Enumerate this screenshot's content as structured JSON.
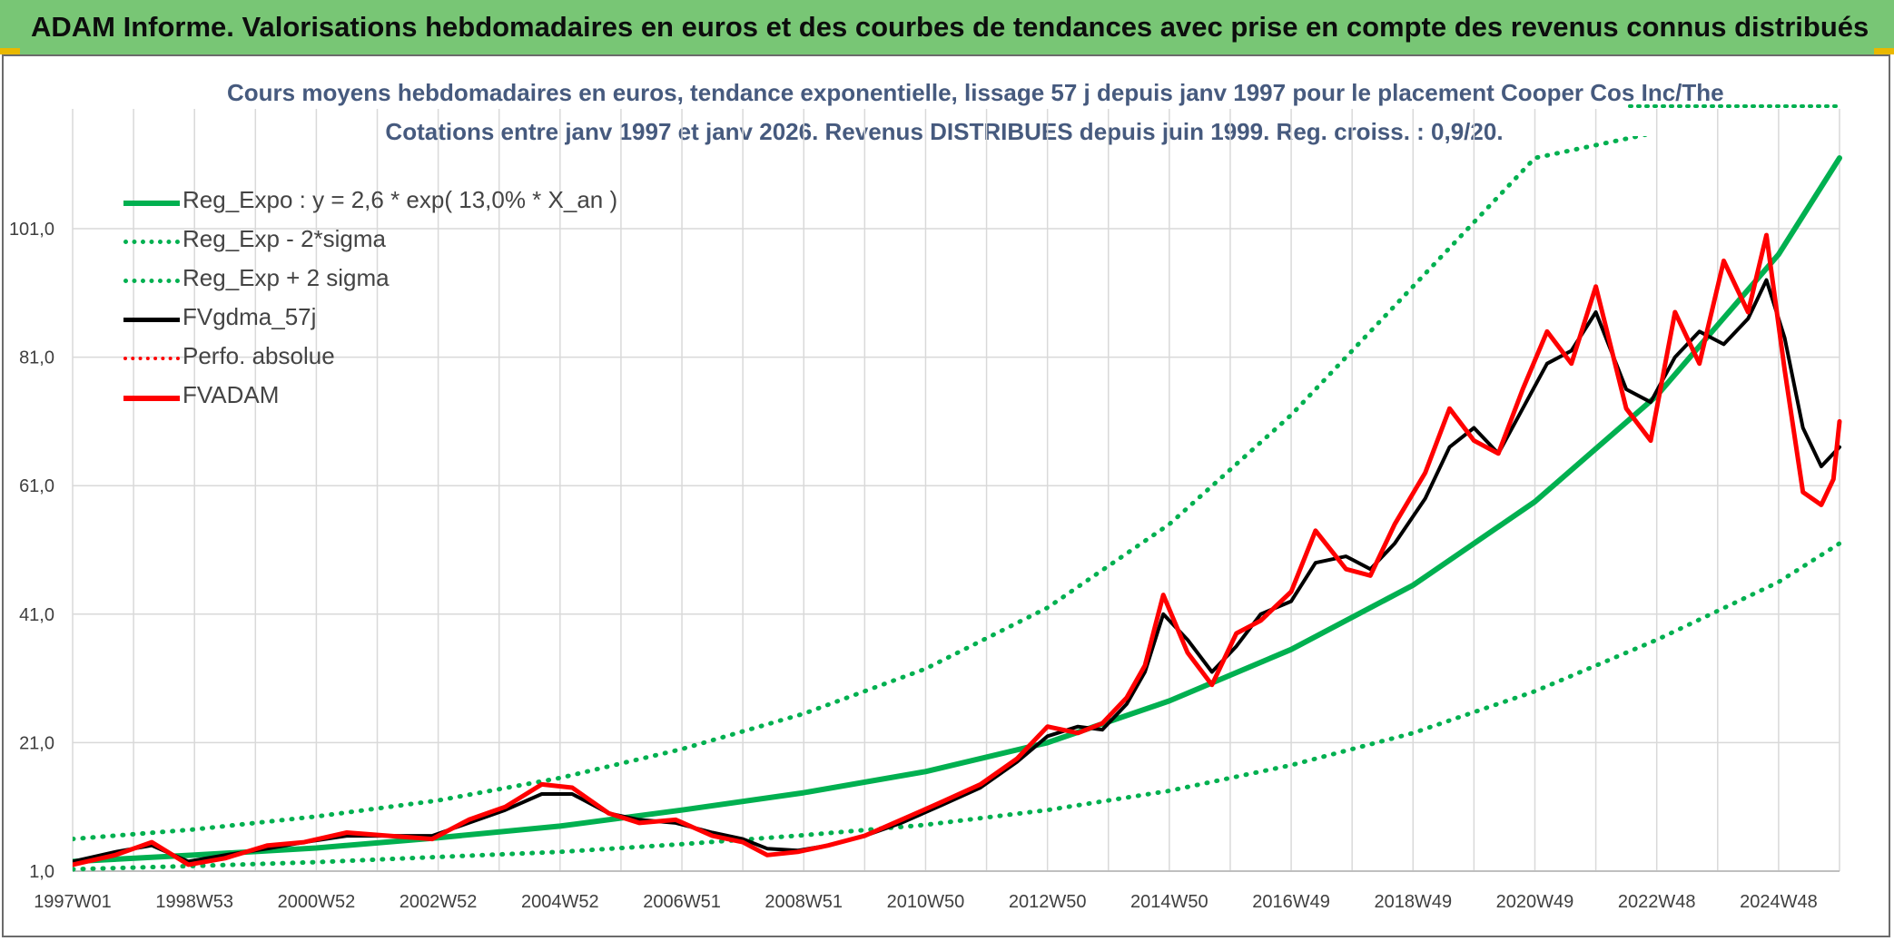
{
  "header": {
    "title": "ADAM Informe. Valorisations hebdomadaires en euros et des courbes de tendances avec prise en compte des revenus connus distribués"
  },
  "colors": {
    "header_bg": "#78c675",
    "trend": "#00b050",
    "smooth": "#000000",
    "price": "#ff0000",
    "subtitle": "#465a7e"
  },
  "chart_data": {
    "type": "line",
    "title_line1": "Cours moyens hebdomadaires en euros, tendance exponentielle, lissage 57 j depuis janv 1997 pour le placement Cooper Cos Inc/The",
    "title_line2": "Cotations entre janv 1997 et janv 2026. Revenus DISTRIBUES depuis juin 1999. Reg. croiss. : 0,9/20.",
    "xlabel": "",
    "ylabel": "",
    "x_tick_labels": [
      "1997W01",
      "1998W53",
      "2000W52",
      "2002W52",
      "2004W52",
      "2006W51",
      "2008W51",
      "2010W50",
      "2012W50",
      "2014W50",
      "2016W49",
      "2018W49",
      "2020W49",
      "2022W48",
      "2024W48"
    ],
    "x_range": [
      1997.0,
      2026.0
    ],
    "y_tick_labels": [
      "1,0",
      "21,0",
      "41,0",
      "61,0",
      "81,0",
      "101,0"
    ],
    "ylim": [
      1,
      116
    ],
    "grid": true,
    "legend_position": "top-left",
    "legend": [
      {
        "label": "Reg_Expo : y = 2,6 * exp( 13,0% *  X_an )",
        "style": "solid",
        "color": "#00b050"
      },
      {
        "label": "Reg_Exp - 2*sigma",
        "style": "dotted",
        "color": "#00b050"
      },
      {
        "label": "Reg_Exp + 2 sigma",
        "style": "dotted",
        "color": "#00b050"
      },
      {
        "label": "FVgdma_57j",
        "style": "solid",
        "color": "#000000"
      },
      {
        "label": "Perfo. absolue",
        "style": "dotted",
        "color": "#ff0000"
      },
      {
        "label": "FVADAM",
        "style": "solid",
        "color": "#ff0000"
      }
    ],
    "series": [
      {
        "name": "Reg_Expo : y = 2,6 * exp( 13,0% *  X_an )",
        "x": [
          1997,
          1999,
          2001,
          2003,
          2005,
          2007,
          2009,
          2011,
          2013,
          2015,
          2017,
          2019,
          2021,
          2023,
          2025,
          2026
        ],
        "values": [
          2.5,
          3.5,
          4.6,
          6.2,
          8.0,
          10.5,
          13.2,
          16.5,
          21.0,
          27.5,
          35.5,
          45.5,
          58.5,
          75.0,
          97.0,
          112.0
        ]
      },
      {
        "name": "Reg_Exp - 2*sigma",
        "x": [
          1997,
          1999,
          2001,
          2003,
          2005,
          2007,
          2009,
          2011,
          2013,
          2015,
          2017,
          2019,
          2021,
          2023,
          2025,
          2026
        ],
        "values": [
          1.3,
          1.8,
          2.4,
          3.2,
          4.0,
          5.2,
          6.6,
          8.2,
          10.5,
          13.5,
          17.5,
          22.5,
          29.0,
          37.0,
          46.0,
          52.0
        ]
      },
      {
        "name": "Reg_Exp + 2 sigma",
        "x": [
          1997,
          1999,
          2001,
          2003,
          2005,
          2007,
          2009,
          2011,
          2013,
          2015,
          2017,
          2019,
          2021,
          2023,
          2025,
          2026
        ],
        "values": [
          6.0,
          7.5,
          9.5,
          12.0,
          15.5,
          20.0,
          25.5,
          32.5,
          42.0,
          55.0,
          72.0,
          92.0,
          112.0,
          116.0,
          116.0,
          116.0
        ]
      },
      {
        "name": "FVgdma_57j",
        "x": [
          1997.0,
          1997.7,
          1998.3,
          1998.9,
          1999.5,
          2000.2,
          2000.8,
          2001.5,
          2002.2,
          2002.9,
          2003.5,
          2004.1,
          2004.7,
          2005.2,
          2005.8,
          2006.3,
          2006.9,
          2007.5,
          2008.0,
          2008.4,
          2008.9,
          2009.4,
          2010.0,
          2010.6,
          2011.2,
          2011.9,
          2012.5,
          2013.0,
          2013.5,
          2013.9,
          2014.3,
          2014.6,
          2014.9,
          2015.3,
          2015.7,
          2016.1,
          2016.5,
          2017.0,
          2017.4,
          2017.9,
          2018.3,
          2018.7,
          2019.2,
          2019.6,
          2020.0,
          2020.4,
          2020.8,
          2021.2,
          2021.6,
          2022.0,
          2022.5,
          2022.9,
          2023.3,
          2023.7,
          2024.1,
          2024.5,
          2024.8,
          2025.1,
          2025.4,
          2025.7,
          2025.9,
          2026.0
        ],
        "values": [
          2.5,
          4.0,
          5.0,
          2.5,
          3.5,
          4.5,
          5.5,
          6.5,
          6.5,
          6.5,
          8.5,
          10.5,
          13.0,
          13.0,
          10.0,
          9.0,
          8.5,
          7.0,
          6.0,
          4.5,
          4.2,
          5.0,
          6.5,
          8.5,
          11.0,
          14.0,
          18.0,
          22.0,
          23.5,
          23.0,
          27.0,
          32.0,
          41.0,
          37.0,
          32.0,
          36.0,
          41.0,
          43.0,
          49.0,
          50.0,
          48.0,
          52.0,
          59.0,
          67.0,
          70.0,
          66.0,
          73.0,
          80.0,
          82.0,
          88.0,
          76.0,
          74.0,
          81.0,
          85.0,
          83.0,
          87.0,
          93.0,
          84.0,
          70.0,
          64.0,
          66.0,
          67.0
        ]
      },
      {
        "name": "FVADAM",
        "x": [
          1997.0,
          1997.7,
          1998.3,
          1998.9,
          1999.5,
          2000.2,
          2000.8,
          2001.5,
          2002.2,
          2002.9,
          2003.5,
          2004.1,
          2004.7,
          2005.2,
          2005.8,
          2006.3,
          2006.9,
          2007.5,
          2008.0,
          2008.4,
          2008.9,
          2009.4,
          2010.0,
          2010.6,
          2011.2,
          2011.9,
          2012.5,
          2013.0,
          2013.5,
          2013.9,
          2014.3,
          2014.6,
          2014.9,
          2015.3,
          2015.7,
          2016.1,
          2016.5,
          2017.0,
          2017.4,
          2017.9,
          2018.3,
          2018.7,
          2019.2,
          2019.6,
          2020.0,
          2020.4,
          2020.8,
          2021.2,
          2021.6,
          2022.0,
          2022.5,
          2022.9,
          2023.3,
          2023.7,
          2024.1,
          2024.5,
          2024.8,
          2025.1,
          2025.4,
          2025.7,
          2025.9,
          2026.0
        ],
        "values": [
          2.0,
          3.5,
          5.5,
          2.0,
          3.0,
          5.0,
          5.5,
          7.0,
          6.5,
          6.0,
          9.0,
          11.0,
          14.5,
          14.0,
          10.0,
          8.5,
          9.0,
          6.5,
          5.5,
          3.5,
          4.0,
          5.0,
          6.5,
          9.0,
          11.5,
          14.5,
          18.5,
          23.5,
          22.5,
          24.0,
          28.0,
          33.0,
          44.0,
          35.0,
          30.0,
          38.0,
          40.0,
          44.5,
          54.0,
          48.0,
          47.0,
          55.0,
          63.0,
          73.0,
          68.0,
          66.0,
          76.0,
          85.0,
          80.0,
          92.0,
          73.0,
          68.0,
          88.0,
          80.0,
          96.0,
          88.0,
          100.0,
          79.0,
          60.0,
          58.0,
          62.0,
          71.0
        ]
      }
    ]
  }
}
